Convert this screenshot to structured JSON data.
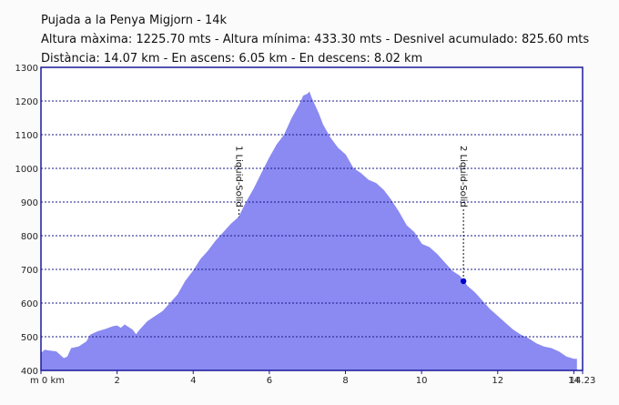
{
  "header": {
    "line1": "Pujada a la Penya Migjorn - 14k",
    "line2": "Altura màxima: 1225.70 mts - Altura mínima: 433.30 mts - Desnivel acumulado: 825.60 mts",
    "line3": "Distància: 14.07 km - En ascens: 6.05 km - En descens: 8.02 km"
  },
  "colors": {
    "fill": "#8a8af2",
    "grid": "#1a1a8a",
    "axis": "#1a1a9a",
    "marker": "#0000cc"
  },
  "chart_data": {
    "type": "area",
    "title": "",
    "xlabel": "km",
    "ylabel": "m",
    "xlim": [
      0,
      14.23
    ],
    "ylim": [
      400,
      1300
    ],
    "grid": true,
    "x_ticks": [
      0,
      2,
      4,
      6,
      8,
      10,
      12,
      14,
      14.23
    ],
    "x_tick_labels": [
      "m 0 km",
      "2",
      "4",
      "6",
      "8",
      "10",
      "12",
      "14",
      "14.23"
    ],
    "y_ticks": [
      400,
      500,
      600,
      700,
      800,
      900,
      1000,
      1100,
      1200,
      1300
    ],
    "y_tick_labels": [
      "400",
      "500",
      "600",
      "700",
      "800",
      "900",
      "1000",
      "1100",
      "1200",
      "1300"
    ],
    "x": [
      0,
      0.1,
      0.2,
      0.4,
      0.6,
      0.7,
      0.8,
      1.0,
      1.2,
      1.3,
      1.5,
      1.7,
      1.9,
      2.0,
      2.1,
      2.2,
      2.4,
      2.5,
      2.6,
      2.8,
      3.0,
      3.2,
      3.4,
      3.6,
      3.8,
      4.0,
      4.2,
      4.4,
      4.6,
      4.8,
      5.0,
      5.2,
      5.4,
      5.6,
      5.8,
      6.0,
      6.2,
      6.4,
      6.6,
      6.8,
      6.9,
      7.0,
      7.05,
      7.1,
      7.2,
      7.3,
      7.4,
      7.6,
      7.8,
      8.0,
      8.2,
      8.4,
      8.6,
      8.8,
      9.0,
      9.2,
      9.4,
      9.6,
      9.8,
      10.0,
      10.2,
      10.4,
      10.6,
      10.8,
      11.0,
      11.2,
      11.4,
      11.6,
      11.8,
      12.0,
      12.2,
      12.4,
      12.6,
      12.8,
      13.0,
      13.2,
      13.4,
      13.6,
      13.8,
      14.0,
      14.07
    ],
    "y": [
      450,
      460,
      458,
      455,
      435,
      440,
      465,
      470,
      485,
      505,
      515,
      522,
      530,
      532,
      525,
      535,
      520,
      505,
      520,
      545,
      560,
      575,
      600,
      625,
      665,
      695,
      730,
      755,
      785,
      810,
      835,
      855,
      900,
      940,
      985,
      1030,
      1070,
      1100,
      1150,
      1190,
      1215,
      1220,
      1225.7,
      1210,
      1185,
      1160,
      1130,
      1090,
      1060,
      1040,
      1000,
      985,
      965,
      955,
      935,
      905,
      870,
      830,
      810,
      775,
      765,
      745,
      720,
      695,
      680,
      650,
      630,
      605,
      580,
      560,
      540,
      520,
      505,
      495,
      480,
      470,
      465,
      455,
      440,
      433.3,
      433.3
    ],
    "annotations": [
      {
        "label": "1 Liquid-Solid",
        "x": 5.2
      },
      {
        "label": "2 Liquid-Solid",
        "x": 11.1
      }
    ]
  }
}
